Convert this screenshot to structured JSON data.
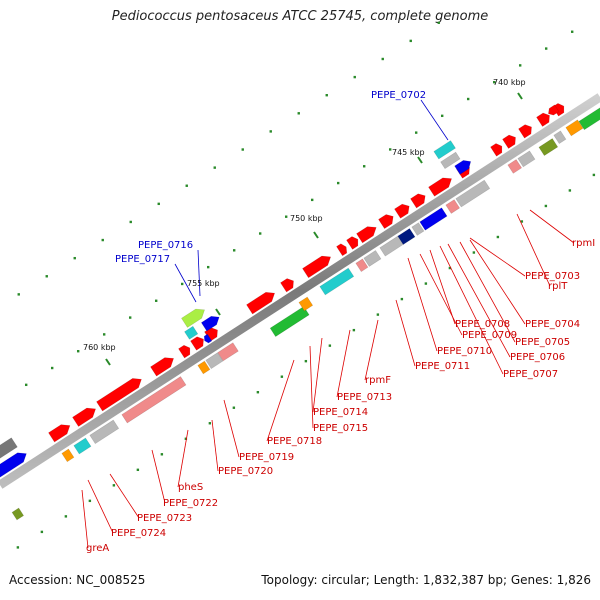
{
  "title": "Pediococcus pentosaceus ATCC 25745, complete genome",
  "footer": {
    "accession": "Accession: NC_008525",
    "summary": "Topology: circular; Length: 1,832,387 bp; Genes: 1,826"
  },
  "colors": {
    "red": "#ff0000",
    "pink": "#f08a8a",
    "grey": "#b8b8b8",
    "cyan": "#22cccc",
    "blue": "#0000ee",
    "navy": "#001a80",
    "green": "#22bb33",
    "lightgreen": "#aaee44",
    "olive": "#779922",
    "orange": "#ff9900",
    "backbone": "#888888"
  },
  "kbp_labels": [
    {
      "text": "740 kbp"
    },
    {
      "text": "745 kbp"
    },
    {
      "text": "750 kbp"
    },
    {
      "text": "755 kbp"
    },
    {
      "text": "760 kbp"
    }
  ],
  "gene_labels_red": [
    {
      "text": "rpmI"
    },
    {
      "text": "rplT"
    },
    {
      "text": "PEPE_0703"
    },
    {
      "text": "PEPE_0704"
    },
    {
      "text": "PEPE_0705"
    },
    {
      "text": "PEPE_0706"
    },
    {
      "text": "PEPE_0707"
    },
    {
      "text": "PEPE_0708"
    },
    {
      "text": "PEPE_0709"
    },
    {
      "text": "PEPE_0710"
    },
    {
      "text": "PEPE_0711"
    },
    {
      "text": "rpmF"
    },
    {
      "text": "PEPE_0713"
    },
    {
      "text": "PEPE_0714"
    },
    {
      "text": "PEPE_0715"
    },
    {
      "text": "PEPE_0718"
    },
    {
      "text": "PEPE_0719"
    },
    {
      "text": "PEPE_0720"
    },
    {
      "text": "pheS"
    },
    {
      "text": "PEPE_0722"
    },
    {
      "text": "PEPE_0723"
    },
    {
      "text": "PEPE_0724"
    },
    {
      "text": "greA"
    }
  ],
  "gene_labels_blue": [
    {
      "text": "PEPE_0702"
    },
    {
      "text": "PEPE_0716"
    },
    {
      "text": "PEPE_0717"
    }
  ]
}
